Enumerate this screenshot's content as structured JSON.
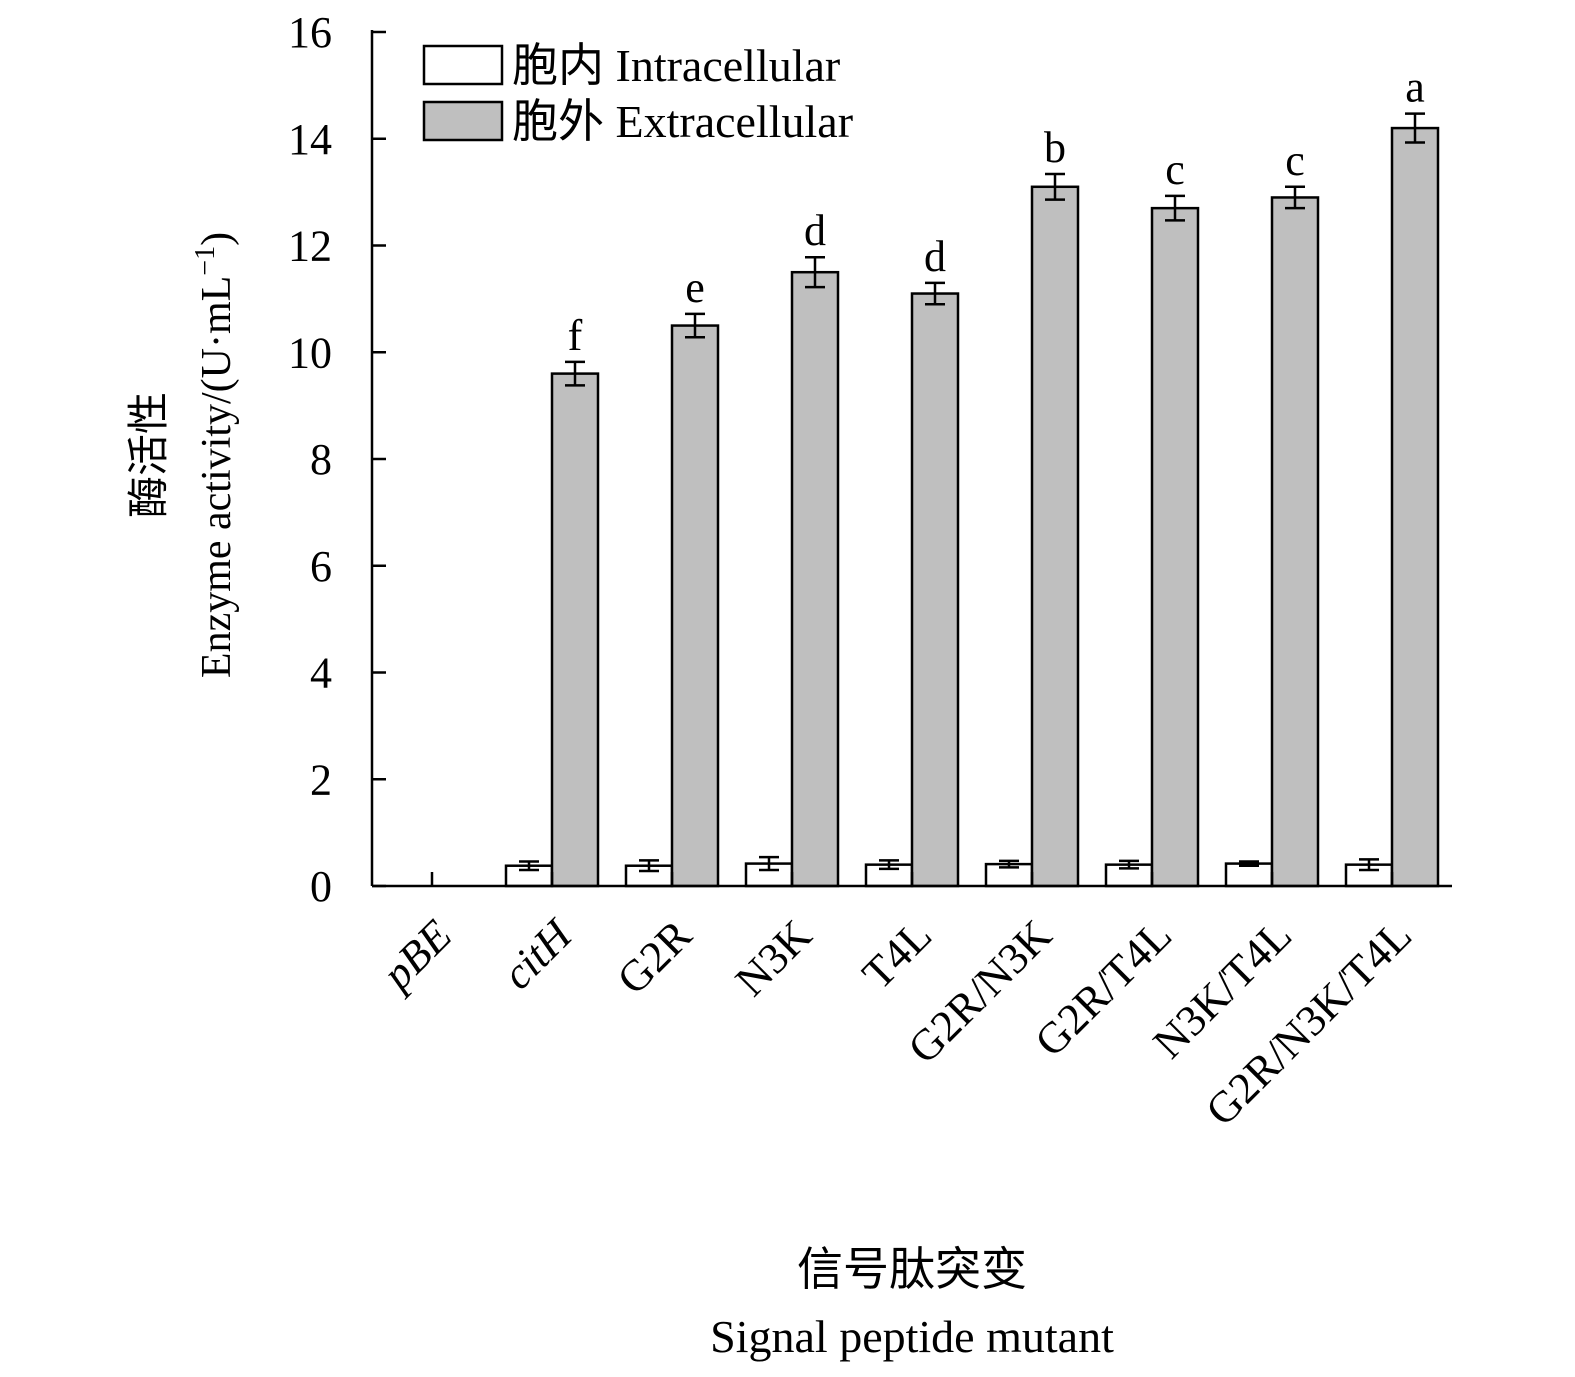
{
  "chart_data": {
    "type": "bar",
    "categories": [
      "pBE",
      "citH",
      "G2R",
      "N3K",
      "T4L",
      "G2R/N3K",
      "G2R/T4L",
      "N3K/T4L",
      "G2R/N3K/T4L"
    ],
    "categories_italic": [
      true,
      true,
      false,
      false,
      false,
      false,
      false,
      false,
      false
    ],
    "series": [
      {
        "name": "胞内 Intracellular",
        "color": "#ffffff",
        "values": [
          null,
          0.38,
          0.38,
          0.42,
          0.4,
          0.41,
          0.4,
          0.42,
          0.4
        ],
        "errors": [
          null,
          0.08,
          0.1,
          0.12,
          0.08,
          0.06,
          0.07,
          0.04,
          0.1
        ]
      },
      {
        "name": "胞外 Extracellular",
        "color": "#bfbfbf",
        "values": [
          null,
          9.6,
          10.5,
          11.5,
          11.1,
          13.1,
          12.7,
          12.9,
          14.2
        ],
        "errors": [
          null,
          0.22,
          0.22,
          0.28,
          0.2,
          0.24,
          0.23,
          0.2,
          0.27
        ],
        "significance": [
          "",
          "f",
          "e",
          "d",
          "d",
          "b",
          "c",
          "c",
          "a"
        ]
      }
    ],
    "ylabel_cn": "酶活性",
    "ylabel_en": "Enzyme activity/(U·mL",
    "ylabel_exp": "−1",
    "ylabel_close": ")",
    "xlabel_cn": "信号肽突变",
    "xlabel_en": "Signal peptide mutant",
    "ylim": [
      0,
      16
    ],
    "yticks": [
      0,
      2,
      4,
      6,
      8,
      10,
      12,
      14,
      16
    ],
    "grid": false,
    "legend_position": "top-left"
  }
}
